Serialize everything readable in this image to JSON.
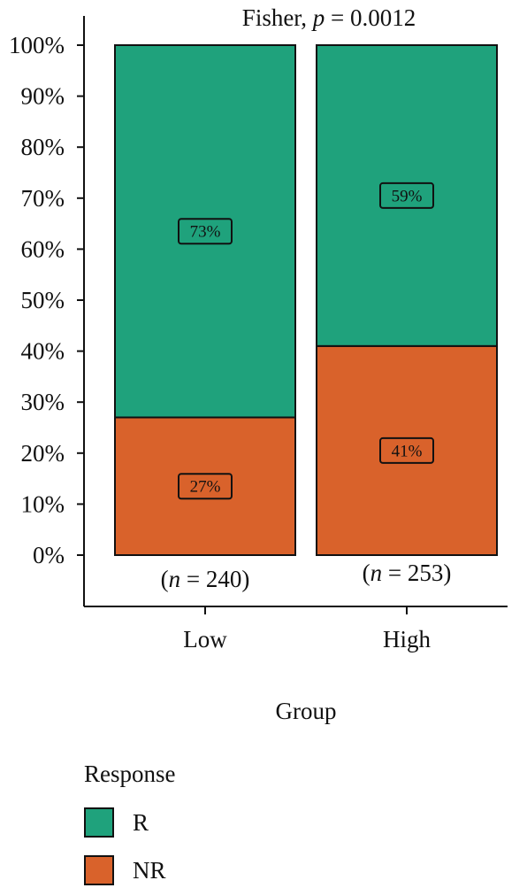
{
  "chart_data": {
    "type": "bar",
    "stacked": true,
    "title": "Fisher, p = 0.0012",
    "title_parts": {
      "prefix": "Fisher, ",
      "italic": "p",
      "suffix": " = 0.0012"
    },
    "xlabel": "Group",
    "ylabel": "",
    "ylim": [
      0,
      100
    ],
    "y_ticks": [
      {
        "value": 0,
        "label": "0%"
      },
      {
        "value": 10,
        "label": "10%"
      },
      {
        "value": 20,
        "label": "20%"
      },
      {
        "value": 30,
        "label": "30%"
      },
      {
        "value": 40,
        "label": "40%"
      },
      {
        "value": 50,
        "label": "50%"
      },
      {
        "value": 60,
        "label": "60%"
      },
      {
        "value": 70,
        "label": "70%"
      },
      {
        "value": 80,
        "label": "80%"
      },
      {
        "value": 90,
        "label": "90%"
      },
      {
        "value": 100,
        "label": "100%"
      }
    ],
    "categories": [
      "Low",
      "High"
    ],
    "n_labels": [
      {
        "italic": "n",
        "text": " = 240",
        "open": "(",
        "close": ")"
      },
      {
        "italic": "n",
        "text": " = 253",
        "open": "(",
        "close": ")"
      }
    ],
    "series": [
      {
        "name": "NR",
        "values": [
          27,
          41
        ],
        "labels": [
          "27%",
          "41%"
        ],
        "color": "#D9622B"
      },
      {
        "name": "R",
        "values": [
          73,
          59
        ],
        "labels": [
          "73%",
          "59%"
        ],
        "color": "#1FA27C"
      }
    ],
    "grid": false,
    "legend": {
      "title": "Response",
      "placement": "bottom-left",
      "items": [
        {
          "name": "R",
          "color": "#1FA27C"
        },
        {
          "name": "NR",
          "color": "#D9622B"
        }
      ]
    }
  }
}
